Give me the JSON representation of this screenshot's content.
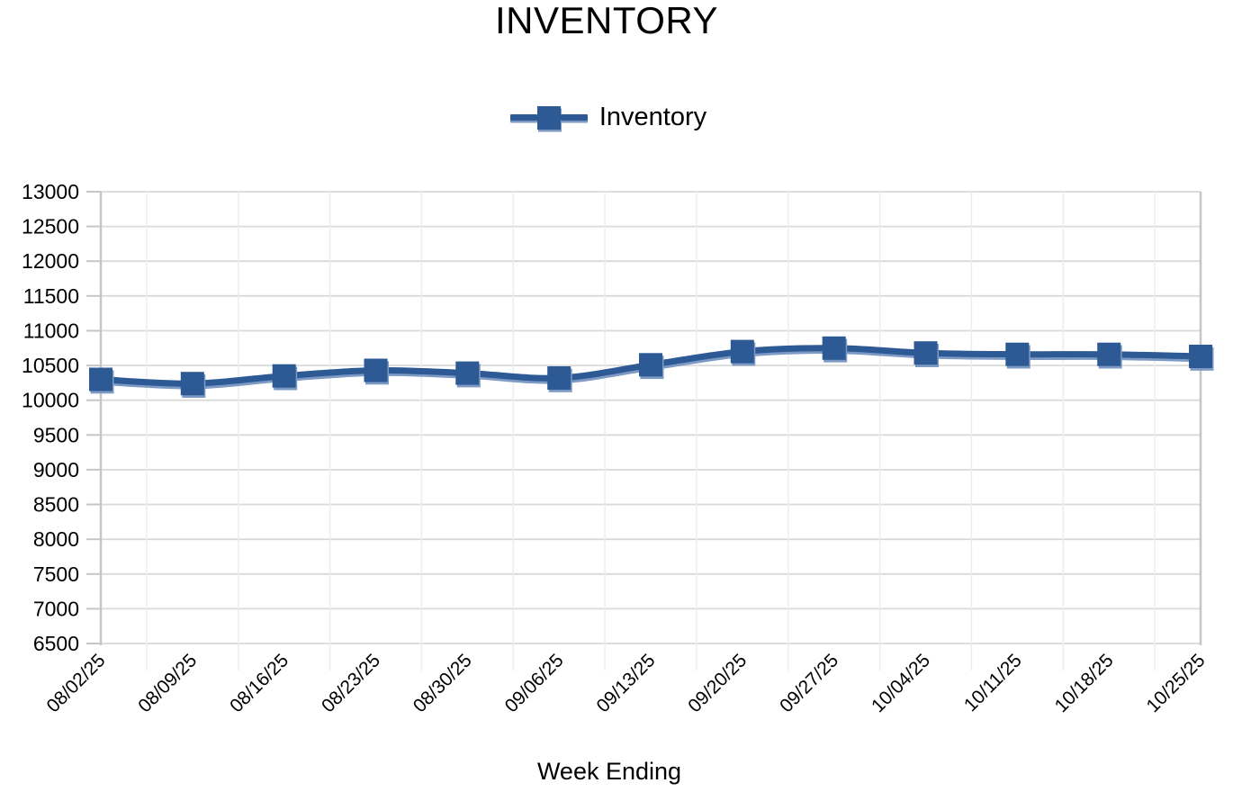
{
  "chart_data": {
    "type": "line",
    "title": "INVENTORY",
    "xlabel": "Week Ending",
    "ylabel": "",
    "legend_position": "top-center",
    "legend": [
      {
        "label": "Inventory"
      }
    ],
    "categories": [
      "08/02/25",
      "08/09/25",
      "08/16/25",
      "08/23/25",
      "08/30/25",
      "09/06/25",
      "09/13/25",
      "09/20/25",
      "09/27/25",
      "10/04/25",
      "10/11/25",
      "10/18/25",
      "10/25/25"
    ],
    "series": [
      {
        "name": "Inventory",
        "values": [
          10300,
          10240,
          10350,
          10430,
          10390,
          10320,
          10510,
          10700,
          10750,
          10680,
          10660,
          10660,
          10630
        ]
      }
    ],
    "ylim": [
      6500,
      13000
    ],
    "yticks": [
      6500,
      7000,
      7500,
      8000,
      8500,
      9000,
      9500,
      10000,
      10500,
      11000,
      11500,
      12000,
      12500,
      13000
    ],
    "grid": "horizontal",
    "marker": "square",
    "line_smooth": true,
    "colors": {
      "line": "#2d5a94",
      "marker": "#2d5a94",
      "marker_shade": "#7c9ac4",
      "gridline": "#d9d9d9",
      "axis": "#c6c6c6",
      "boundary_tick": "#ededed",
      "text": "#000000",
      "background": "#ffffff"
    }
  }
}
